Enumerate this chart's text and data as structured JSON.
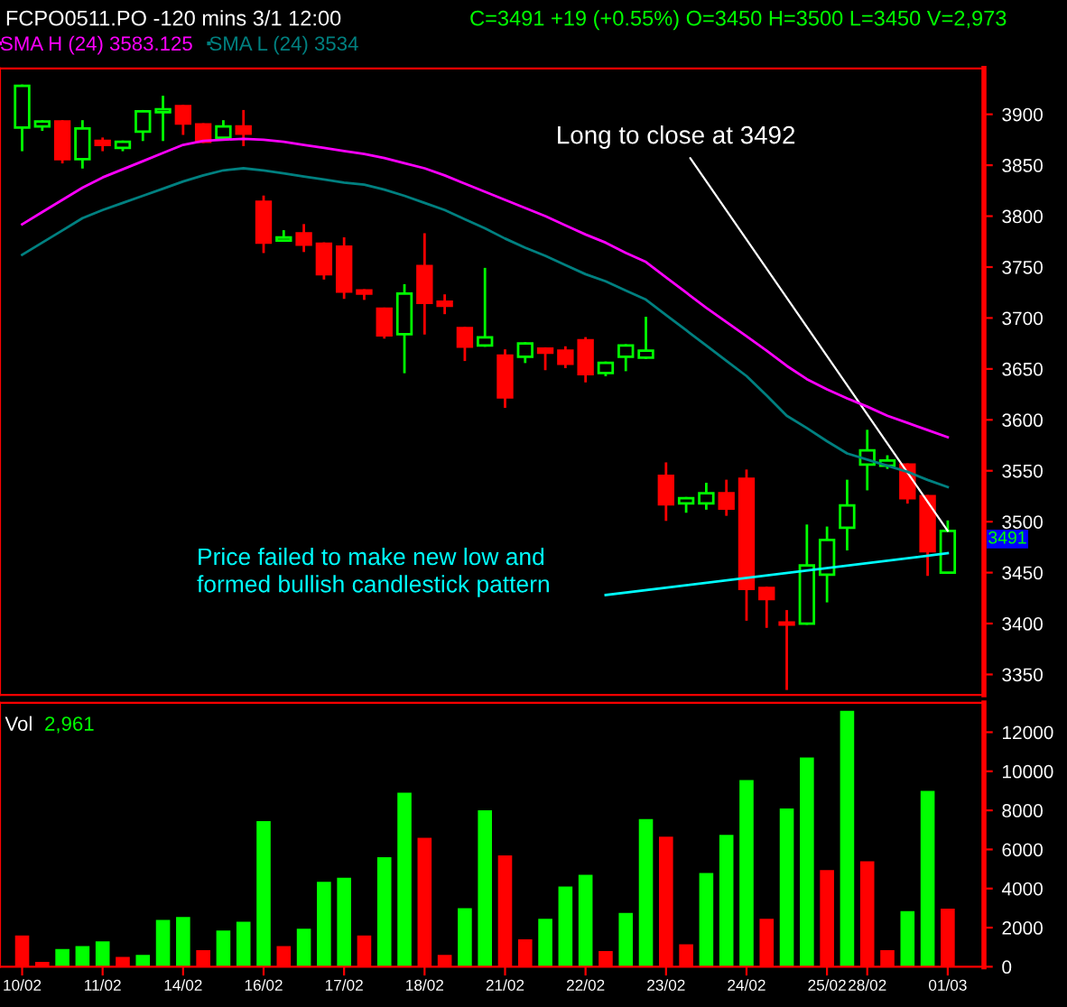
{
  "chart_data": [
    {
      "type": "candlestick",
      "title": "FCPO0511.PO -120 mins 3/1 12:00",
      "subtitle": "C=3491 +19 (+0.55%) O=3450 H=3500 L=3450 V=2,973",
      "categories": [
        null,
        null,
        null,
        null,
        null,
        null,
        null,
        null,
        null,
        null,
        null,
        null,
        null,
        null,
        null,
        null,
        null,
        null,
        null,
        null,
        null,
        null,
        null,
        null,
        null,
        null,
        null,
        null,
        null,
        null,
        null,
        null,
        null,
        null,
        null,
        null,
        null,
        null,
        null,
        null,
        null,
        null,
        null,
        null,
        null,
        null,
        null
      ],
      "ohlc": [
        [
          3887,
          3928,
          3865,
          3928
        ],
        [
          3888,
          3893,
          3885,
          3893
        ],
        [
          3893,
          3893,
          3853,
          3856
        ],
        [
          3856,
          3893,
          3848,
          3886
        ],
        [
          3874,
          3876,
          3865,
          3870
        ],
        [
          3867,
          3873,
          3865,
          3873
        ],
        [
          3883,
          3903,
          3875,
          3903
        ],
        [
          3902,
          3917,
          3875,
          3905
        ],
        [
          3908,
          3908,
          3881,
          3891
        ],
        [
          3890,
          3890,
          3873,
          3873
        ],
        [
          3877,
          3893,
          3877,
          3888
        ],
        [
          3888,
          3903,
          3870,
          3881
        ],
        [
          3814,
          3819,
          3765,
          3774
        ],
        [
          3776,
          3785,
          3776,
          3779
        ],
        [
          3783,
          3791,
          3766,
          3772
        ],
        [
          3773,
          3773,
          3739,
          3743
        ],
        [
          3770,
          3778,
          3720,
          3726
        ],
        [
          3727,
          3727,
          3719,
          3724
        ],
        [
          3709,
          3709,
          3681,
          3683
        ],
        [
          3684,
          3732,
          3647,
          3724
        ],
        [
          3751,
          3782,
          3685,
          3715
        ],
        [
          3716,
          3722,
          3705,
          3712
        ],
        [
          3690,
          3690,
          3659,
          3672
        ],
        [
          3673,
          3748,
          3673,
          3681
        ],
        [
          3663,
          3668,
          3613,
          3622
        ],
        [
          3662,
          3675,
          3657,
          3675
        ],
        [
          3670,
          3670,
          3650,
          3666
        ],
        [
          3668,
          3671,
          3652,
          3655
        ],
        [
          3678,
          3680,
          3638,
          3645
        ],
        [
          3646,
          3656,
          3644,
          3656
        ],
        [
          3662,
          3673,
          3649,
          3673
        ],
        [
          3661,
          3700,
          3661,
          3668
        ],
        [
          3545,
          3557,
          3502,
          3517
        ],
        [
          3518,
          3523,
          3510,
          3523
        ],
        [
          3518,
          3537,
          3513,
          3528
        ],
        [
          3528,
          3540,
          3507,
          3513
        ],
        [
          3542,
          3550,
          3404,
          3434
        ],
        [
          3435,
          3435,
          3397,
          3424
        ],
        [
          3401,
          3412,
          3336,
          3399
        ],
        [
          3400,
          3496,
          3400,
          3457
        ],
        [
          3448,
          3494,
          3422,
          3482
        ],
        [
          3494,
          3540,
          3473,
          3516
        ],
        [
          3556,
          3589,
          3532,
          3570
        ],
        [
          3555,
          3564,
          3553,
          3560
        ],
        [
          3556,
          3556,
          3519,
          3523
        ],
        [
          3525,
          3525,
          3448,
          3471
        ],
        [
          3450,
          3500,
          3450,
          3491
        ]
      ],
      "colors": [
        "#00ff00",
        "#00ff00",
        "#ff0000",
        "#00ff00",
        "#ff0000",
        "#00ff00",
        "#00ff00",
        "#00ff00",
        "#ff0000",
        "#ff0000",
        "#00ff00",
        "#ff0000",
        "#ff0000",
        "#00ff00",
        "#ff0000",
        "#ff0000",
        "#ff0000",
        "#ff0000",
        "#ff0000",
        "#00ff00",
        "#ff0000",
        "#ff0000",
        "#ff0000",
        "#00ff00",
        "#ff0000",
        "#00ff00",
        "#ff0000",
        "#ff0000",
        "#ff0000",
        "#00ff00",
        "#00ff00",
        "#00ff00",
        "#ff0000",
        "#00ff00",
        "#00ff00",
        "#ff0000",
        "#ff0000",
        "#ff0000",
        "#ff0000",
        "#00ff00",
        "#00ff00",
        "#00ff00",
        "#00ff00",
        "#00ff00",
        "#ff0000",
        "#ff0000",
        "#00ff00"
      ],
      "series": [
        {
          "name": "SMA H (24) 3583.125",
          "type": "line",
          "color": "#ff00ff",
          "values": [
            3792,
            3804,
            3816,
            3828,
            3838,
            3846,
            3854,
            3862,
            3870,
            3874,
            3875,
            3876,
            3875,
            3873,
            3870,
            3867,
            3864,
            3861,
            3857,
            3852,
            3847,
            3840,
            3832,
            3824,
            3816,
            3808,
            3800,
            3791,
            3782,
            3774,
            3764,
            3755,
            3740,
            3725,
            3710,
            3696,
            3682,
            3668,
            3653,
            3640,
            3630,
            3621,
            3613,
            3604,
            3597,
            3590,
            3583
          ]
        },
        {
          "name": "SMA L (24) 3534",
          "type": "line",
          "color": "#008080",
          "values": [
            3762,
            3774,
            3786,
            3798,
            3806,
            3813,
            3820,
            3827,
            3834,
            3840,
            3845,
            3847,
            3845,
            3842,
            3839,
            3836,
            3833,
            3831,
            3826,
            3820,
            3813,
            3806,
            3797,
            3788,
            3778,
            3769,
            3761,
            3752,
            3743,
            3736,
            3727,
            3718,
            3703,
            3688,
            3673,
            3658,
            3643,
            3624,
            3604,
            3592,
            3579,
            3567,
            3561,
            3555,
            3549,
            3541,
            3534
          ]
        },
        {
          "type": "line",
          "color": "#00ffff",
          "values": [
            null,
            null,
            null,
            null,
            null,
            null,
            null,
            null,
            null,
            null,
            null,
            null,
            null,
            null,
            null,
            null,
            null,
            null,
            null,
            null,
            null,
            null,
            null,
            null,
            null,
            null,
            null,
            null,
            null,
            3428,
            null,
            null,
            null,
            null,
            null,
            null,
            null,
            null,
            null,
            null,
            null,
            null,
            null,
            null,
            null,
            null,
            3469
          ]
        }
      ],
      "ylim": [
        3330,
        3945
      ],
      "yticks": [
        3350,
        3400,
        3450,
        3500,
        3550,
        3600,
        3650,
        3700,
        3750,
        3800,
        3850,
        3900
      ],
      "tick_labels": "y",
      "legend": "top left",
      "annotations": [
        "Long to close at 3492",
        "Price failed to make new low and formed bullish candlestick pattern",
        "3491"
      ]
    },
    {
      "type": "bar",
      "categories": [
        "10/02",
        null,
        null,
        null,
        "11/02",
        null,
        null,
        null,
        "14/02",
        null,
        null,
        null,
        "16/02",
        null,
        null,
        null,
        "17/02",
        null,
        null,
        null,
        "18/02",
        null,
        null,
        null,
        "21/02",
        null,
        null,
        null,
        "22/02",
        null,
        null,
        null,
        "23/02",
        null,
        null,
        null,
        "24/02",
        null,
        null,
        null,
        "25/02",
        null,
        "28/02",
        null,
        null,
        null,
        "01/03"
      ],
      "series": [
        {
          "name": "Vol",
          "colors": [
            "#ff0000",
            "#ff0000",
            "#00ff00",
            "#00ff00",
            "#00ff00",
            "#ff0000",
            "#00ff00",
            "#00ff00",
            "#00ff00",
            "#ff0000",
            "#00ff00",
            "#00ff00",
            "#00ff00",
            "#ff0000",
            "#00ff00",
            "#00ff00",
            "#00ff00",
            "#ff0000",
            "#00ff00",
            "#00ff00",
            "#ff0000",
            "#ff0000",
            "#00ff00",
            "#00ff00",
            "#ff0000",
            "#ff0000",
            "#00ff00",
            "#00ff00",
            "#00ff00",
            "#ff0000",
            "#00ff00",
            "#00ff00",
            "#ff0000",
            "#ff0000",
            "#00ff00",
            "#00ff00",
            "#00ff00",
            "#ff0000",
            "#00ff00",
            "#00ff00",
            "#ff0000",
            "#00ff00",
            "#ff0000",
            "#ff0000",
            "#00ff00",
            "#00ff00",
            "#ff0000"
          ],
          "values": [
            1600,
            250,
            900,
            1050,
            1300,
            500,
            600,
            2400,
            2550,
            850,
            1850,
            2300,
            7450,
            1050,
            1950,
            4350,
            4550,
            1600,
            5600,
            8900,
            6600,
            600,
            3000,
            8000,
            5700,
            1400,
            2450,
            4100,
            4700,
            800,
            2750,
            7550,
            6650,
            1150,
            4800,
            6750,
            9550,
            2450,
            8100,
            10700,
            4950,
            13100,
            5400,
            850,
            2850,
            9000,
            2970
          ]
        }
      ],
      "ylim": [
        0,
        13500
      ],
      "yticks": [
        0,
        2000,
        4000,
        6000,
        8000,
        10000,
        12000
      ],
      "annotations": [
        "2,961"
      ]
    }
  ]
}
